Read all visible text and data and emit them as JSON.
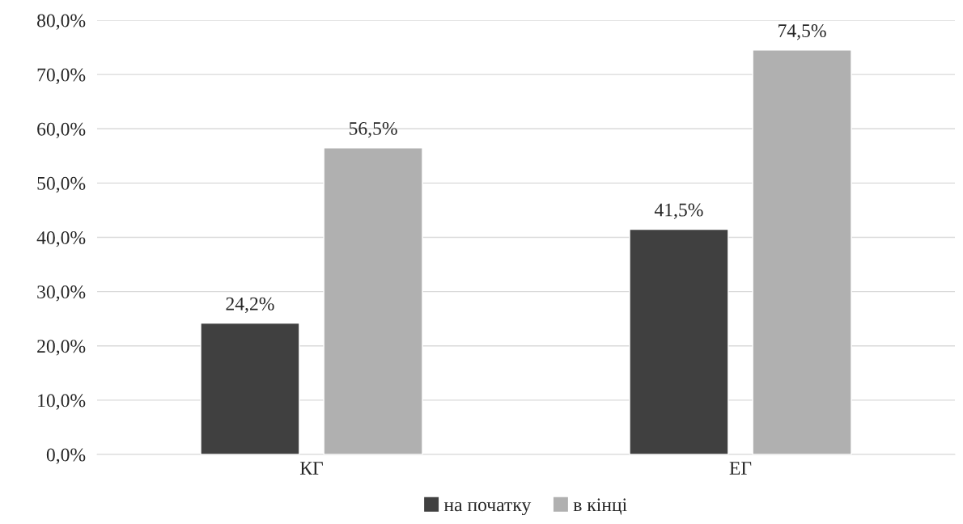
{
  "chart_data": {
    "type": "bar",
    "categories": [
      "КГ",
      "ЕГ"
    ],
    "series": [
      {
        "name": "на початку",
        "color": "#404040",
        "values": [
          24.2,
          41.5
        ],
        "value_labels": [
          "24,2%",
          "41,5%"
        ]
      },
      {
        "name": "в кінці",
        "color": "#b0b0b0",
        "values": [
          56.5,
          74.5
        ],
        "value_labels": [
          "56,5%",
          "74,5%"
        ]
      }
    ],
    "ylim": [
      0,
      80
    ],
    "yticks": [
      {
        "value": 0,
        "label": "0,0%"
      },
      {
        "value": 10,
        "label": "10,0%"
      },
      {
        "value": 20,
        "label": "20,0%"
      },
      {
        "value": 30,
        "label": "30,0%"
      },
      {
        "value": 40,
        "label": "40,0%"
      },
      {
        "value": 50,
        "label": "50,0%"
      },
      {
        "value": 60,
        "label": "60,0%"
      },
      {
        "value": 70,
        "label": "70,0%"
      },
      {
        "value": 80,
        "label": "80,0%"
      }
    ],
    "grid": "y",
    "legend": "bottom"
  }
}
